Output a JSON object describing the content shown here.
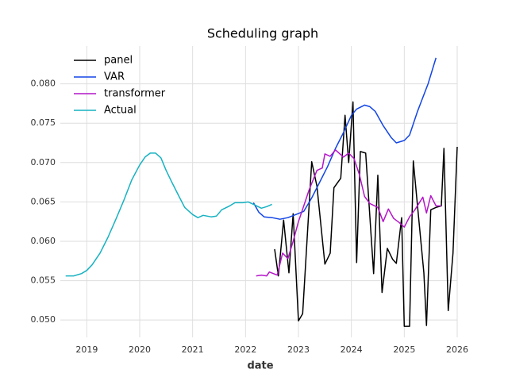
{
  "chart_data": {
    "type": "line",
    "title": "Scheduling graph",
    "x_label": "date",
    "xlim": [
      2018.5,
      2026
    ],
    "xticks": [
      2019,
      2020,
      2021,
      2022,
      2023,
      2024,
      2025,
      2026
    ],
    "ylim": [
      0.0478,
      0.0848
    ],
    "yticks": [
      {
        "value": 0.05,
        "label": "0.050"
      },
      {
        "value": 0.055,
        "label": "0.055"
      },
      {
        "value": 0.06,
        "label": "0.060"
      },
      {
        "value": 0.065,
        "label": "0.065"
      },
      {
        "value": 0.07,
        "label": "0.070"
      },
      {
        "value": 0.075,
        "label": "0.075"
      },
      {
        "value": 0.08,
        "label": "0.080"
      }
    ],
    "grid": true,
    "legend": "upper left",
    "series": [
      {
        "name": "panel",
        "color": "#000000",
        "x": [
          2022.55,
          2022.62,
          2022.72,
          2022.82,
          2022.9,
          2023.0,
          2023.08,
          2023.25,
          2023.35,
          2023.5,
          2023.6,
          2023.67,
          2023.8,
          2023.88,
          2023.95,
          2024.03,
          2024.1,
          2024.17,
          2024.27,
          2024.42,
          2024.5,
          2024.58,
          2024.68,
          2024.78,
          2024.85,
          2024.95,
          2025.0,
          2025.1,
          2025.17,
          2025.25,
          2025.37,
          2025.42,
          2025.5,
          2025.6,
          2025.7,
          2025.75,
          2025.83,
          2025.92,
          2026.0
        ],
        "values": [
          0.059,
          0.0556,
          0.0627,
          0.056,
          0.0635,
          0.0499,
          0.0508,
          0.0701,
          0.067,
          0.0571,
          0.0585,
          0.0668,
          0.068,
          0.076,
          0.07,
          0.0777,
          0.0573,
          0.0714,
          0.0712,
          0.0559,
          0.0684,
          0.0535,
          0.0591,
          0.0577,
          0.0572,
          0.063,
          0.0492,
          0.0492,
          0.0702,
          0.0645,
          0.056,
          0.0493,
          0.064,
          0.0643,
          0.0645,
          0.0718,
          0.0512,
          0.0585,
          0.072
        ]
      },
      {
        "name": "VAR",
        "color": "#1245e6",
        "x": [
          2022.15,
          2022.25,
          2022.35,
          2022.5,
          2022.65,
          2022.8,
          2022.95,
          2023.1,
          2023.25,
          2023.4,
          2023.55,
          2023.7,
          2023.85,
          2024.0,
          2024.1,
          2024.25,
          2024.35,
          2024.45,
          2024.6,
          2024.75,
          2024.85,
          2025.0,
          2025.1,
          2025.25,
          2025.45,
          2025.6
        ],
        "values": [
          0.0649,
          0.0637,
          0.0631,
          0.063,
          0.0628,
          0.063,
          0.0634,
          0.0638,
          0.0655,
          0.0675,
          0.0695,
          0.0718,
          0.0738,
          0.076,
          0.0768,
          0.0773,
          0.0771,
          0.0765,
          0.0747,
          0.0732,
          0.0725,
          0.0728,
          0.0735,
          0.0765,
          0.08,
          0.0833
        ]
      },
      {
        "name": "transformer",
        "color": "#b415c8",
        "x": [
          2022.2,
          2022.3,
          2022.4,
          2022.45,
          2022.6,
          2022.7,
          2022.8,
          2022.9,
          2023.0,
          2023.1,
          2023.2,
          2023.35,
          2023.45,
          2023.5,
          2023.6,
          2023.7,
          2023.85,
          2023.95,
          2024.05,
          2024.15,
          2024.25,
          2024.35,
          2024.5,
          2024.6,
          2024.7,
          2024.8,
          2024.9,
          2025.0,
          2025.1,
          2025.2,
          2025.35,
          2025.42,
          2025.5,
          2025.6,
          2025.7
        ],
        "values": [
          0.0556,
          0.0557,
          0.0556,
          0.0561,
          0.0557,
          0.0585,
          0.0578,
          0.06,
          0.0625,
          0.0645,
          0.0665,
          0.069,
          0.0693,
          0.0711,
          0.0708,
          0.0716,
          0.0707,
          0.0712,
          0.0705,
          0.0685,
          0.0657,
          0.0648,
          0.0643,
          0.0625,
          0.0641,
          0.0629,
          0.0624,
          0.0618,
          0.0631,
          0.064,
          0.0656,
          0.0636,
          0.0658,
          0.0645,
          0.0645
        ]
      },
      {
        "name": "Actual",
        "color": "#17b2c2",
        "x": [
          2018.6,
          2018.75,
          2018.9,
          2019.0,
          2019.1,
          2019.25,
          2019.4,
          2019.55,
          2019.7,
          2019.85,
          2020.0,
          2020.1,
          2020.2,
          2020.3,
          2020.4,
          2020.5,
          2020.6,
          2020.75,
          2020.85,
          2021.0,
          2021.1,
          2021.2,
          2021.35,
          2021.45,
          2021.55,
          2021.7,
          2021.8,
          2021.95,
          2022.05,
          2022.15,
          2022.3,
          2022.4,
          2022.5
        ],
        "values": [
          0.0556,
          0.0556,
          0.0559,
          0.0563,
          0.057,
          0.0585,
          0.0605,
          0.0628,
          0.0652,
          0.0678,
          0.0697,
          0.0707,
          0.0712,
          0.0712,
          0.0706,
          0.069,
          0.0676,
          0.0656,
          0.0643,
          0.0634,
          0.063,
          0.0633,
          0.0631,
          0.0632,
          0.064,
          0.0645,
          0.0649,
          0.0649,
          0.065,
          0.0647,
          0.0642,
          0.0644,
          0.0647
        ]
      }
    ]
  }
}
